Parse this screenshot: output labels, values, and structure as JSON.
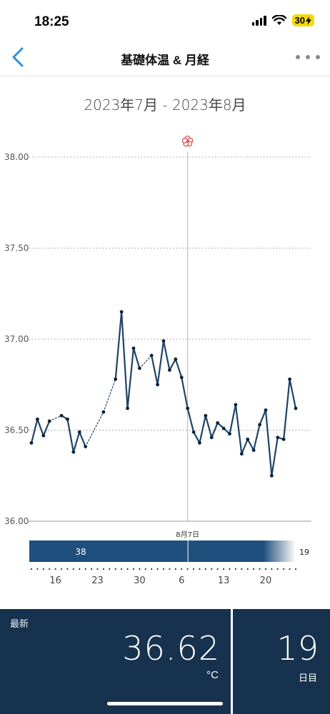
{
  "status_bar": {
    "time": "18:25",
    "battery": "30"
  },
  "nav": {
    "title": "基礎体温 & 月経",
    "back_icon": "chevron-left-icon",
    "more_icon": "ellipsis-icon"
  },
  "date_range": "2023年7月 - 2023年8月",
  "chart_data": {
    "type": "line",
    "y_ticks": [
      "38.00",
      "37.50",
      "37.00",
      "36.50",
      "36.00"
    ],
    "ylim": [
      36.0,
      38.0
    ],
    "x_tick_labels": [
      {
        "day": 4,
        "label": "16"
      },
      {
        "day": 11,
        "label": "23"
      },
      {
        "day": 18,
        "label": "30"
      },
      {
        "day": 25,
        "label": "6"
      },
      {
        "day": 32,
        "label": "13"
      },
      {
        "day": 39,
        "label": "20"
      }
    ],
    "x_range": [
      0,
      44
    ],
    "cycle_start": {
      "day": 26,
      "label": "8月7日",
      "marker_icon": "flower-icon",
      "line_color": "#f29a9a"
    },
    "series": [
      {
        "values": [
          {
            "day": 0,
            "value": 36.43
          },
          {
            "day": 1,
            "value": 36.56
          },
          {
            "day": 2,
            "value": 36.47
          },
          {
            "day": 3,
            "value": 36.55
          },
          {
            "day": 5,
            "value": 36.58
          },
          {
            "day": 6,
            "value": 36.56
          },
          {
            "day": 7,
            "value": 36.38
          },
          {
            "day": 8,
            "value": 36.49
          },
          {
            "day": 9,
            "value": 36.41
          },
          {
            "day": 12,
            "value": 36.6
          },
          {
            "day": 14,
            "value": 36.78
          },
          {
            "day": 15,
            "value": 37.15
          },
          {
            "day": 16,
            "value": 36.62
          },
          {
            "day": 17,
            "value": 36.95
          },
          {
            "day": 18,
            "value": 36.84
          },
          {
            "day": 20,
            "value": 36.91
          },
          {
            "day": 21,
            "value": 36.75
          },
          {
            "day": 22,
            "value": 36.99
          },
          {
            "day": 23,
            "value": 36.83
          },
          {
            "day": 24,
            "value": 36.89
          },
          {
            "day": 25,
            "value": 36.79
          },
          {
            "day": 26,
            "value": 36.62
          },
          {
            "day": 27,
            "value": 36.49
          },
          {
            "day": 28,
            "value": 36.43
          },
          {
            "day": 29,
            "value": 36.58
          },
          {
            "day": 30,
            "value": 36.46
          },
          {
            "day": 31,
            "value": 36.54
          },
          {
            "day": 32,
            "value": 36.51
          },
          {
            "day": 33,
            "value": 36.48
          },
          {
            "day": 34,
            "value": 36.64
          },
          {
            "day": 35,
            "value": 36.37
          },
          {
            "day": 36,
            "value": 36.45
          },
          {
            "day": 37,
            "value": 36.39
          },
          {
            "day": 38,
            "value": 36.53
          },
          {
            "day": 39,
            "value": 36.61
          },
          {
            "day": 40,
            "value": 36.25
          },
          {
            "day": 41,
            "value": 36.46
          },
          {
            "day": 42,
            "value": 36.45
          },
          {
            "day": 43,
            "value": 36.78
          },
          {
            "day": 44,
            "value": 36.62
          }
        ]
      }
    ],
    "cycles": [
      {
        "start_day": 0,
        "end_day": 26,
        "length_label": "38"
      },
      {
        "start_day": 26,
        "end_day": 44,
        "length_label": "19"
      }
    ],
    "colors": {
      "line": "#1f4466",
      "grid": "#9a9a9a",
      "cycle_bar": "#1f4f7c"
    }
  },
  "summary": {
    "latest_label": "最新",
    "latest_value": "36.62",
    "latest_unit": "°C",
    "day_value": "19",
    "day_unit": "日目"
  }
}
